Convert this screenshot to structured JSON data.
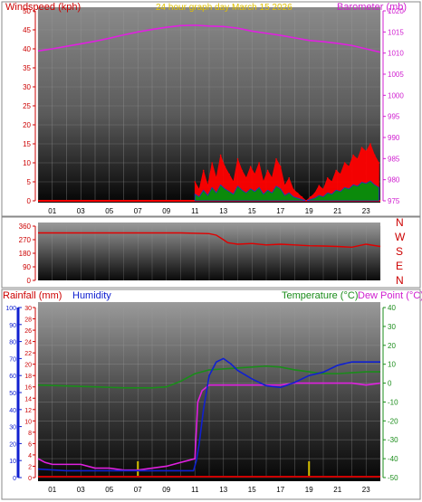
{
  "header": {
    "left_title": "Windspeed (kph)",
    "center_title": "24 hour graph day   March 15 2026",
    "right_title": "Barometer (mb)"
  },
  "colors": {
    "windspeed": "#ff0000",
    "gust_fill": "#ff0000",
    "wind_green": "#0b8a0b",
    "wind_blue": "#1a33cc",
    "barometer": "#e020e0",
    "direction": "#e00000",
    "humidity": "#1020d0",
    "temperature": "#1a8c1a",
    "dewpoint": "#e020e0",
    "rainfall": "#cc0000",
    "rain_bars": "#d6c000",
    "left_axis_rain": "#1020d0",
    "title_yellow": "#e0c000"
  },
  "wind_direction_labels": [
    "N",
    "W",
    "S",
    "E",
    "N"
  ],
  "rain_header": {
    "rainfall_label": "Rainfall (mm)",
    "humidity_label": "Humidity",
    "temperature_label": "Temperature (°C)",
    "dewpoint_label": "Dew Point (°C)"
  },
  "chart_data": [
    {
      "type": "line",
      "panel": "wind_barometer",
      "title": "24 hour graph day   March 15 2026",
      "xlabel": "",
      "x_ticks": [
        "01",
        "03",
        "05",
        "07",
        "09",
        "11",
        "13",
        "15",
        "17",
        "19",
        "21",
        "23"
      ],
      "xlim": [
        0,
        24
      ],
      "ylabel_left": "Windspeed (kph)",
      "ylim_left": [
        0,
        50
      ],
      "yticks_left": [
        0,
        5,
        10,
        15,
        20,
        25,
        30,
        35,
        40,
        45,
        50
      ],
      "ylabel_right": "Barometer (mb)",
      "ylim_right": [
        975,
        1020
      ],
      "yticks_right": [
        975,
        980,
        985,
        990,
        995,
        1000,
        1005,
        1010,
        1015,
        1020
      ],
      "series": [
        {
          "name": "Barometer (mb)",
          "axis": "right",
          "x": [
            0,
            1,
            2,
            3,
            4,
            5,
            6,
            7,
            8,
            9,
            10,
            11,
            12,
            13,
            14,
            15,
            16,
            17,
            18,
            19,
            20,
            21,
            22,
            23,
            24
          ],
          "values": [
            1010.5,
            1011.0,
            1011.6,
            1012.2,
            1012.8,
            1013.5,
            1014.3,
            1015.0,
            1015.6,
            1016.1,
            1016.5,
            1016.6,
            1016.4,
            1016.3,
            1015.9,
            1015.2,
            1014.7,
            1014.2,
            1013.6,
            1013.0,
            1012.7,
            1012.3,
            1011.8,
            1011.0,
            1010.2
          ]
        },
        {
          "name": "Windspeed (kph)",
          "axis": "left",
          "x": [
            11.0,
            11.3,
            11.6,
            11.9,
            12.2,
            12.5,
            12.8,
            13.1,
            13.4,
            13.7,
            14.0,
            14.3,
            14.6,
            14.9,
            15.2,
            15.5,
            15.8,
            16.1,
            16.4,
            16.7,
            17.0,
            17.3,
            17.6,
            17.9,
            18.2,
            18.5,
            18.8,
            19.1,
            19.4,
            19.7,
            20.0,
            20.3,
            20.6,
            20.9,
            21.2,
            21.5,
            21.8,
            22.1,
            22.4,
            22.7,
            23.0,
            23.3,
            23.6,
            23.9
          ],
          "values": [
            5,
            3,
            8,
            4,
            10,
            6,
            12,
            9,
            7,
            5,
            11,
            8,
            6,
            9,
            7,
            10,
            5,
            8,
            6,
            11,
            9,
            4,
            6,
            3,
            2,
            1,
            0,
            1,
            2,
            4,
            3,
            6,
            5,
            8,
            7,
            10,
            9,
            12,
            11,
            14,
            13,
            15,
            12,
            10
          ]
        }
      ]
    },
    {
      "type": "line",
      "panel": "wind_direction",
      "xlim": [
        0,
        24
      ],
      "ylim": [
        0,
        360
      ],
      "yticks": [
        0,
        45,
        90,
        135,
        180,
        225,
        270,
        315,
        360
      ],
      "series": [
        {
          "name": "Wind direction",
          "x": [
            0,
            2,
            4,
            6,
            8,
            10,
            12,
            12.5,
            13,
            13.3,
            14,
            15,
            16,
            17,
            18,
            19,
            20,
            21,
            22,
            23,
            24
          ],
          "values": [
            315,
            315,
            315,
            315,
            315,
            315,
            310,
            300,
            270,
            250,
            240,
            245,
            235,
            240,
            235,
            230,
            228,
            225,
            220,
            240,
            225
          ]
        }
      ]
    },
    {
      "type": "line",
      "panel": "temperature_humidity_rain",
      "x_ticks": [
        "01",
        "03",
        "05",
        "07",
        "09",
        "11",
        "13",
        "15",
        "17",
        "19",
        "21",
        "23"
      ],
      "xlim": [
        0,
        24
      ],
      "ylabel_left": "Rainfall (mm)",
      "ylim_rain": [
        0,
        30
      ],
      "yticks_rain": [
        0,
        2,
        4,
        6,
        8,
        10,
        12,
        14,
        16,
        18,
        20,
        22,
        24,
        26,
        28,
        30
      ],
      "ylim_humidity": [
        0,
        100
      ],
      "yticks_humidity": [
        0,
        10,
        20,
        30,
        40,
        50,
        60,
        70,
        80,
        90,
        100
      ],
      "ylabel_right": "Temperature (°C)",
      "ylim_temp": [
        -50,
        40
      ],
      "yticks_temp": [
        -50,
        -40,
        -30,
        -20,
        -10,
        0,
        10,
        20,
        30,
        40
      ],
      "series": [
        {
          "name": "Temperature (°C)",
          "axis": "temp",
          "x": [
            0,
            2,
            4,
            6,
            8,
            9,
            10,
            11,
            12,
            13,
            14,
            15,
            16,
            17,
            18,
            19,
            20,
            21,
            22,
            23,
            24
          ],
          "values": [
            -1,
            -1.5,
            -2,
            -2.5,
            -2.5,
            -2,
            1,
            5,
            7,
            7.5,
            8,
            8.5,
            9,
            8.5,
            7,
            6,
            5,
            5,
            5.5,
            6,
            6
          ]
        },
        {
          "name": "Humidity",
          "axis": "humidity",
          "x": [
            0,
            2,
            4,
            6,
            8,
            10,
            10.9,
            11.1,
            11.3,
            11.6,
            12,
            12.5,
            13,
            13.5,
            14,
            15,
            16,
            17,
            18,
            19,
            20,
            21,
            22,
            23,
            24
          ],
          "values": [
            5,
            4,
            4,
            4,
            4,
            4,
            4,
            10,
            20,
            40,
            60,
            68,
            70,
            67,
            63,
            58,
            54,
            53,
            56,
            60,
            62,
            66,
            68,
            68,
            68
          ]
        },
        {
          "name": "Dew Point (°C)",
          "axis": "temp",
          "x": [
            0,
            0.5,
            1,
            2,
            3,
            4,
            5,
            6,
            7,
            8,
            9,
            10,
            10.5,
            11,
            11.2,
            11.5,
            12,
            13,
            14,
            15,
            16,
            17,
            18,
            19,
            20,
            21,
            22,
            23,
            24
          ],
          "values": [
            -40,
            -42,
            -43,
            -43,
            -43,
            -45,
            -45,
            -46,
            -46,
            -45,
            -44,
            -42,
            -41,
            -40,
            -10,
            -4,
            -1,
            -1,
            -1,
            -1,
            -1,
            -1,
            0,
            0,
            0,
            0,
            0,
            -1,
            0
          ]
        },
        {
          "name": "Rainfall (mm)",
          "axis": "rain",
          "x": [
            0,
            24
          ],
          "values": [
            0,
            0
          ]
        }
      ]
    }
  ]
}
